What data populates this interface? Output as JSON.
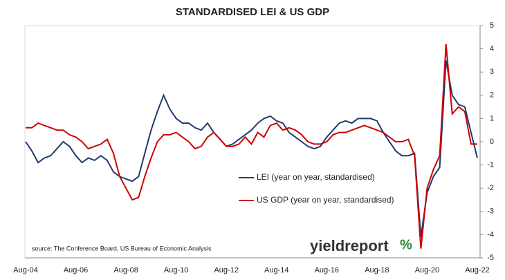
{
  "chart_data": {
    "type": "line",
    "title": "STANDARDISED LEI & US GDP",
    "categories": [
      "Aug-04",
      null,
      null,
      null,
      null,
      null,
      null,
      null,
      "Aug-06",
      null,
      null,
      null,
      null,
      null,
      null,
      null,
      "Aug-08",
      null,
      null,
      null,
      null,
      null,
      null,
      null,
      "Aug-10",
      null,
      null,
      null,
      null,
      null,
      null,
      null,
      "Aug-12",
      null,
      null,
      null,
      null,
      null,
      null,
      null,
      "Aug-14",
      null,
      null,
      null,
      null,
      null,
      null,
      null,
      "Aug-16",
      null,
      null,
      null,
      null,
      null,
      null,
      null,
      "Aug-18",
      null,
      null,
      null,
      null,
      null,
      null,
      null,
      "Aug-20",
      null,
      null,
      null,
      null,
      null,
      null,
      null,
      "Aug-22"
    ],
    "series": [
      {
        "name": "LEI (year on year, standardised)",
        "color": "#1f3a6e",
        "values": [
          0,
          -0.4,
          -0.9,
          -0.7,
          -0.6,
          -0.3,
          0.0,
          -0.2,
          -0.6,
          -0.9,
          -0.7,
          -0.8,
          -0.6,
          -0.8,
          -1.3,
          -1.5,
          -1.6,
          -1.7,
          -1.5,
          -0.5,
          0.5,
          1.3,
          2.0,
          1.4,
          1.0,
          0.8,
          0.8,
          0.6,
          0.5,
          0.8,
          0.4,
          0.1,
          -0.2,
          -0.1,
          0.1,
          0.3,
          0.5,
          0.8,
          1.0,
          1.1,
          0.9,
          0.8,
          0.4,
          0.2,
          0.0,
          -0.2,
          -0.3,
          -0.2,
          0.2,
          0.5,
          0.8,
          0.9,
          0.8,
          1.0,
          1.0,
          1.0,
          0.9,
          0.4,
          0.0,
          -0.4,
          -0.6,
          -0.6,
          -0.5,
          -4.1,
          -2.2,
          -1.5,
          -1.1,
          3.5,
          2.0,
          1.6,
          1.5,
          0.4,
          -0.7
        ]
      },
      {
        "name": "US GDP (year on year, standardised)",
        "color": "#cc0000",
        "values": [
          0.6,
          0.6,
          0.8,
          0.7,
          0.6,
          0.5,
          0.5,
          0.3,
          0.2,
          0.0,
          -0.3,
          -0.2,
          -0.1,
          0.1,
          -0.5,
          -1.5,
          -2.0,
          -2.5,
          -2.4,
          -1.5,
          -0.7,
          0.0,
          0.3,
          0.3,
          0.4,
          0.2,
          0.0,
          -0.3,
          -0.2,
          0.2,
          0.4,
          0.1,
          -0.2,
          -0.2,
          -0.1,
          0.2,
          -0.1,
          0.4,
          0.2,
          0.7,
          0.8,
          0.5,
          0.6,
          0.5,
          0.3,
          0.0,
          -0.1,
          -0.1,
          0.0,
          0.3,
          0.4,
          0.4,
          0.5,
          0.6,
          0.7,
          0.6,
          0.5,
          0.4,
          0.2,
          0.0,
          0.0,
          0.1,
          -0.6,
          -4.6,
          -2.0,
          -1.2,
          -0.6,
          4.2,
          1.2,
          1.5,
          1.3,
          -0.1,
          -0.1
        ]
      }
    ],
    "ylim": [
      -5,
      5
    ],
    "yticks": [
      -5,
      -4,
      -3,
      -2,
      -1,
      0,
      1,
      2,
      3,
      4,
      5
    ],
    "y_axis_side": "right",
    "legend": "center",
    "annotation": "source: The Conference Board, US Bureau of Economic Analysis",
    "logo": {
      "text": "yieldreport",
      "symbol": "%"
    }
  }
}
